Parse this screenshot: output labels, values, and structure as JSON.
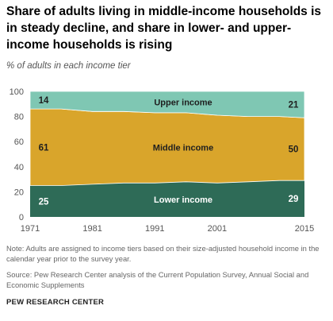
{
  "title": "Share of adults living in middle-income households is in steady decline, and share in lower- and upper-income households is rising",
  "subtitle": "% of adults in each income tier",
  "note": "Note: Adults are assigned to income tiers based on their size-adjusted household income in the calendar year prior to the survey year.",
  "source": "Source: Pew Research Center analysis of the Current Population Survey, Annual Social and Economic Supplements",
  "brand": "PEW RESEARCH CENTER",
  "chart_data": {
    "type": "area",
    "stacked": true,
    "x": [
      1971,
      1976,
      1981,
      1986,
      1991,
      1996,
      2001,
      2006,
      2011,
      2015
    ],
    "xticks": [
      1971,
      1981,
      1991,
      2001,
      2015
    ],
    "yticks": [
      0,
      20,
      40,
      60,
      80,
      100
    ],
    "ylim": [
      0,
      100
    ],
    "xlim": [
      1971,
      2015
    ],
    "grid": false,
    "series": [
      {
        "name": "Lower income",
        "color": "#2e6b57",
        "values": [
          25,
          25,
          26,
          27,
          27,
          28,
          27,
          28,
          29,
          29
        ],
        "start_label": "25",
        "end_label": "29"
      },
      {
        "name": "Middle income",
        "color": "#d9a52b",
        "values": [
          61,
          61,
          58,
          57,
          56,
          55,
          54,
          52,
          51,
          50
        ],
        "start_label": "61",
        "end_label": "50"
      },
      {
        "name": "Upper income",
        "color": "#7fc7b3",
        "values": [
          14,
          14,
          16,
          16,
          17,
          17,
          19,
          20,
          20,
          21
        ],
        "start_label": "14",
        "end_label": "21"
      }
    ]
  }
}
